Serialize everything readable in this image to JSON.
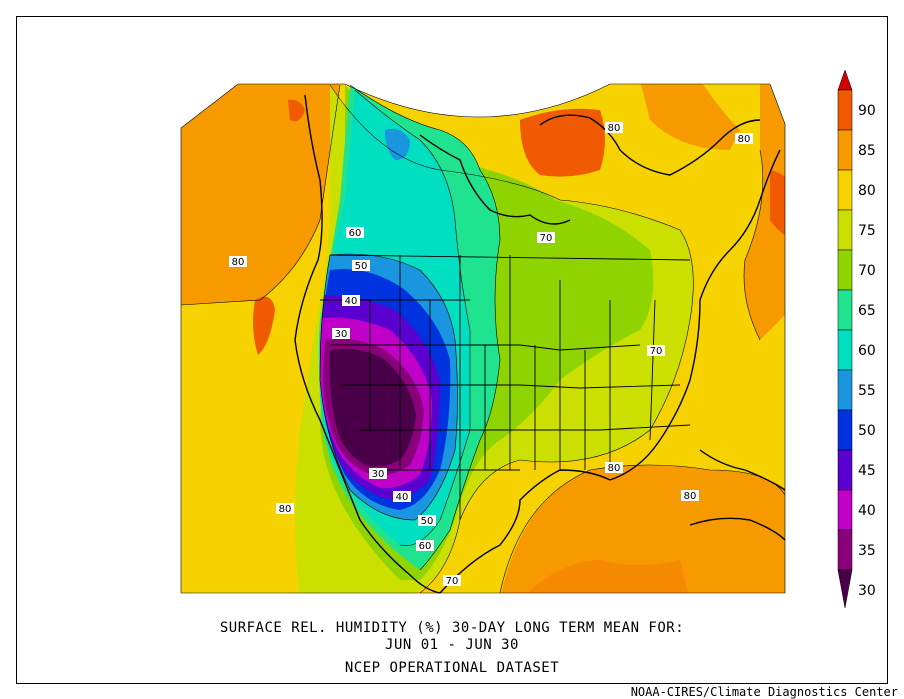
{
  "title": {
    "line1": "SURFACE REL. HUMIDITY (%)   30-DAY LONG TERM MEAN FOR:",
    "line2": "JUN 01 - JUN 30",
    "line3": "NCEP OPERATIONAL DATASET"
  },
  "credit": "NOAA-CIRES/Climate Diagnostics Center",
  "colorbar": {
    "levels": [
      {
        "label": "90",
        "color": "#d40000"
      },
      {
        "label": "85",
        "color": "#f05a00"
      },
      {
        "label": "80",
        "color": "#f79a00"
      },
      {
        "label": "75",
        "color": "#f5d200"
      },
      {
        "label": "70",
        "color": "#cbe000"
      },
      {
        "label": "65",
        "color": "#8fd400"
      },
      {
        "label": "60",
        "color": "#1fe38e"
      },
      {
        "label": "55",
        "color": "#00e0c0"
      },
      {
        "label": "50",
        "color": "#1a96e0"
      },
      {
        "label": "45",
        "color": "#0033e0"
      },
      {
        "label": "40",
        "color": "#5a00d0"
      },
      {
        "label": "35",
        "color": "#c000c8"
      },
      {
        "label": "30",
        "color": "#8a007a"
      }
    ],
    "bottom_color": "#4a0048"
  },
  "contour_labels": [
    "80",
    "80",
    "80",
    "70",
    "60",
    "50",
    "40",
    "30",
    "30",
    "40",
    "50",
    "60",
    "70",
    "70",
    "80",
    "80",
    "80"
  ]
}
